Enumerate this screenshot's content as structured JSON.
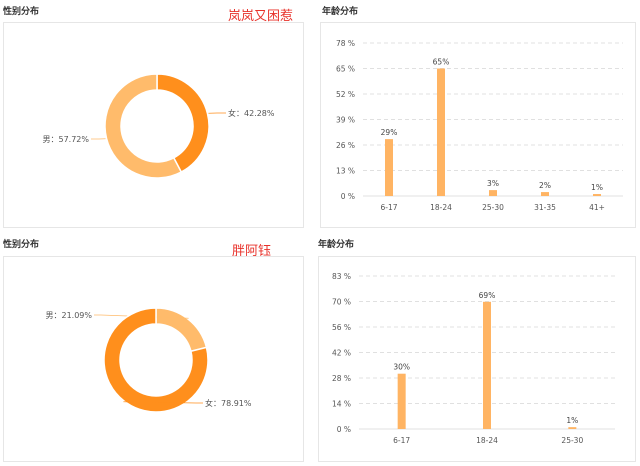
{
  "chart_data": [
    {
      "type": "pie",
      "title": "性别分布",
      "tag": "岚岚又困惹",
      "slices": [
        {
          "name": "女",
          "value": 42.28,
          "label": "女：42.28%",
          "color": "#ff8f1c"
        },
        {
          "name": "男",
          "value": 57.72,
          "label": "男：57.72%",
          "color": "#ffbb6b"
        }
      ]
    },
    {
      "type": "bar",
      "title": "年龄分布",
      "categories": [
        "6-17",
        "18-24",
        "25-30",
        "31-35",
        "41+"
      ],
      "values": [
        29,
        65,
        3,
        2,
        1
      ],
      "value_labels": [
        "29%",
        "65%",
        "3%",
        "2%",
        "1%"
      ],
      "yticks": [
        "0 %",
        "13 %",
        "26 %",
        "39 %",
        "52 %",
        "65 %",
        "78 %"
      ],
      "ylim": [
        0,
        78
      ],
      "color": "#ffb463",
      "grid": true
    },
    {
      "type": "pie",
      "title": "性别分布",
      "tag": "胖阿钰",
      "slices": [
        {
          "name": "男",
          "value": 21.09,
          "label": "男：21.09%",
          "color": "#ffbb6b"
        },
        {
          "name": "女",
          "value": 78.91,
          "label": "女：78.91%",
          "color": "#ff8f1c"
        }
      ]
    },
    {
      "type": "bar",
      "title": "年龄分布",
      "categories": [
        "6-17",
        "18-24",
        "25-30"
      ],
      "values": [
        30,
        69,
        1
      ],
      "value_labels": [
        "30%",
        "69%",
        "1%"
      ],
      "yticks": [
        "0 %",
        "14 %",
        "28 %",
        "42 %",
        "56 %",
        "70 %",
        "83 %"
      ],
      "ylim": [
        0,
        83
      ],
      "color": "#ffb463",
      "grid": true
    }
  ]
}
